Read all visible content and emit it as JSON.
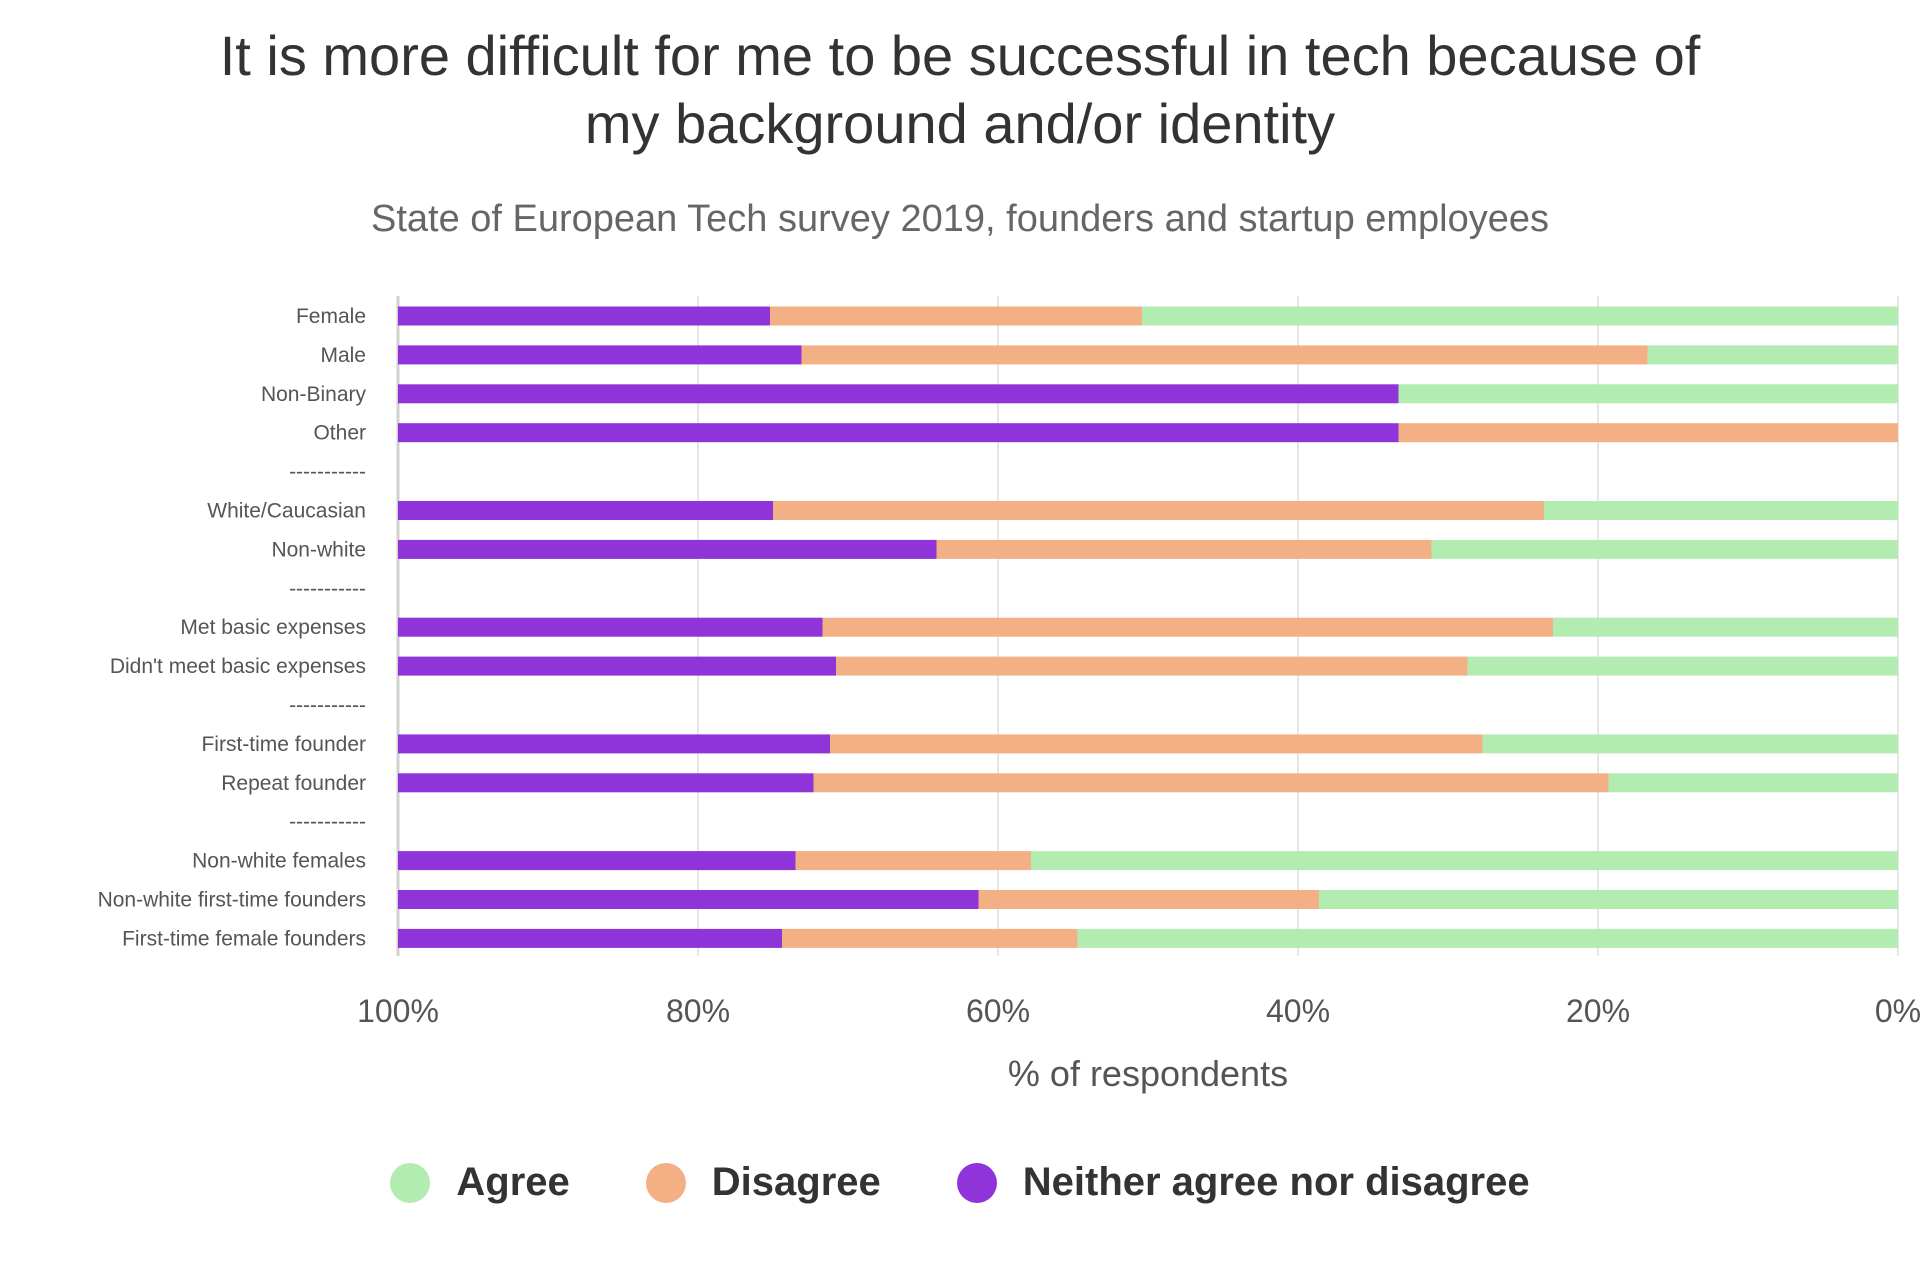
{
  "chart_data": {
    "type": "bar",
    "orientation": "horizontal",
    "stacked": true,
    "title": "It is more difficult for me to be successful in tech because of\nmy background and/or identity",
    "subtitle": "State of European Tech survey 2019, founders and startup employees",
    "xlabel": "% of respondents",
    "ylabel": "",
    "xlim": [
      0,
      100
    ],
    "x_reversed": true,
    "x_ticks": [
      "100%",
      "80%",
      "60%",
      "40%",
      "20%",
      "0%"
    ],
    "grid": true,
    "legend_position": "bottom",
    "categories": [
      "Female",
      "Male",
      "Non-Binary",
      "Other",
      "-----------",
      "White/Caucasian",
      "Non-white",
      "-----------",
      "Met basic expenses",
      "Didn't meet basic expenses",
      "-----------",
      "First-time founder",
      "Repeat founder",
      "-----------",
      "Non-white females",
      "Non-white first-time founders",
      "First-time female founders"
    ],
    "series": [
      {
        "name": "Agree",
        "color": "#b3ecb0",
        "values": [
          50.4,
          16.7,
          33.3,
          0,
          null,
          23.6,
          31.1,
          null,
          23.0,
          28.7,
          null,
          27.7,
          19.3,
          null,
          57.8,
          38.6,
          54.7
        ]
      },
      {
        "name": "Disagree",
        "color": "#f3b084",
        "values": [
          24.8,
          56.4,
          0,
          33.3,
          null,
          51.4,
          33.0,
          null,
          48.7,
          42.1,
          null,
          43.5,
          53.0,
          null,
          15.7,
          22.7,
          19.7
        ]
      },
      {
        "name": "Neither agree nor disagree",
        "color": "#8e34d8",
        "values": [
          24.8,
          26.9,
          66.7,
          66.7,
          null,
          25.0,
          35.9,
          null,
          28.3,
          29.2,
          null,
          28.8,
          27.7,
          null,
          26.5,
          38.7,
          25.6
        ]
      }
    ]
  }
}
